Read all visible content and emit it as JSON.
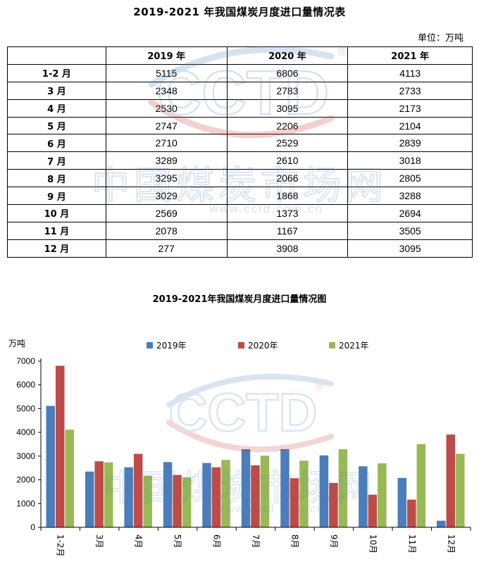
{
  "table": {
    "title": "2019-2021 年我国煤炭月度进口量情况表",
    "unit": "单位：万吨",
    "headers": [
      "",
      "2019 年",
      "2020 年",
      "2021 年"
    ],
    "rows": [
      {
        "month": "1-2 月",
        "v2019": "5115",
        "v2020": "6806",
        "v2021": "4113"
      },
      {
        "month": "3 月",
        "v2019": "2348",
        "v2020": "2783",
        "v2021": "2733"
      },
      {
        "month": "4 月",
        "v2019": "2530",
        "v2020": "3095",
        "v2021": "2173"
      },
      {
        "month": "5 月",
        "v2019": "2747",
        "v2020": "2206",
        "v2021": "2104"
      },
      {
        "month": "6 月",
        "v2019": "2710",
        "v2020": "2529",
        "v2021": "2839"
      },
      {
        "month": "7 月",
        "v2019": "3289",
        "v2020": "2610",
        "v2021": "3018"
      },
      {
        "month": "8 月",
        "v2019": "3295",
        "v2020": "2066",
        "v2021": "2805"
      },
      {
        "month": "9 月",
        "v2019": "3029",
        "v2020": "1868",
        "v2021": "3288"
      },
      {
        "month": "10 月",
        "v2019": "2569",
        "v2020": "1373",
        "v2021": "2694"
      },
      {
        "month": "11 月",
        "v2019": "2078",
        "v2020": "1167",
        "v2021": "3505"
      },
      {
        "month": "12 月",
        "v2019": "277",
        "v2020": "3908",
        "v2021": "3095"
      }
    ]
  },
  "watermark": {
    "logo": "CCTD",
    "cn": "中国煤炭市场网",
    "url": "www.cctd.com.cn",
    "reg": "®"
  },
  "chart_data": {
    "type": "bar",
    "title": "2019-2021年我国煤炭月度进口量情况图",
    "ylabel": "万吨",
    "ylim": [
      0,
      7000
    ],
    "yticks": [
      0,
      1000,
      2000,
      3000,
      4000,
      5000,
      6000,
      7000
    ],
    "categories": [
      "1-2月",
      "3月",
      "4月",
      "5月",
      "6月",
      "7月",
      "8月",
      "9月",
      "10月",
      "11月",
      "12月"
    ],
    "legend_position": "top",
    "series": [
      {
        "name": "2019年",
        "color": "#4A7EBB",
        "values": [
          5115,
          2348,
          2530,
          2747,
          2710,
          3289,
          3295,
          3029,
          2569,
          2078,
          277
        ]
      },
      {
        "name": "2020年",
        "color": "#BE4B48",
        "values": [
          6806,
          2783,
          3095,
          2206,
          2529,
          2610,
          2066,
          1868,
          1373,
          1167,
          3908
        ]
      },
      {
        "name": "2021年",
        "color": "#98B954",
        "values": [
          4113,
          2733,
          2173,
          2104,
          2839,
          3018,
          2805,
          3288,
          2694,
          3505,
          3095
        ]
      }
    ]
  }
}
